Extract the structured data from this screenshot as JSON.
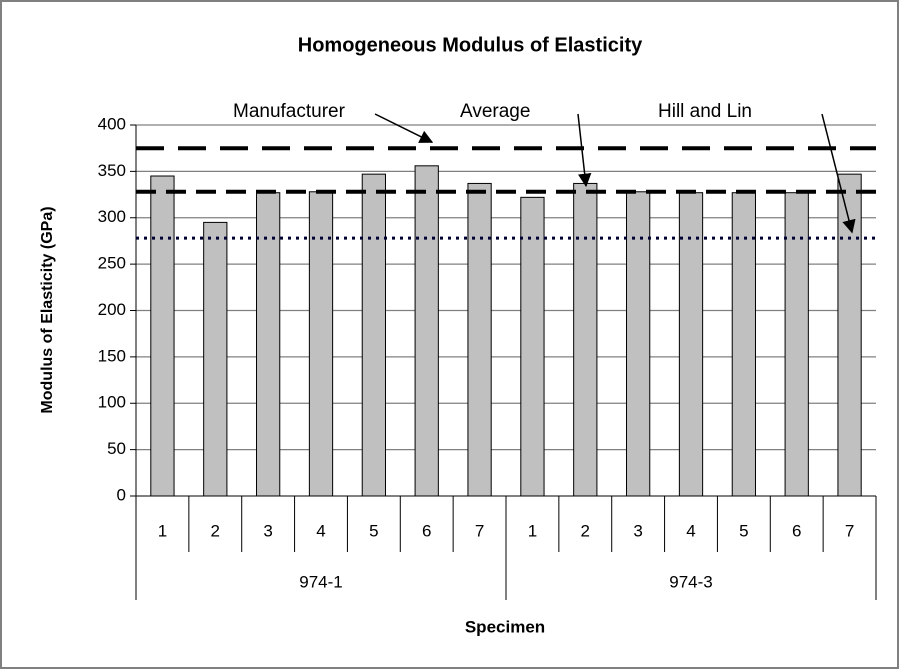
{
  "chart_data": {
    "type": "bar",
    "title": "Homogeneous Modulus of Elasticity",
    "x_label": "Specimen",
    "y_label": "Modulus of Elasticity (GPa)",
    "groups": [
      {
        "name": "974-1",
        "categories": [
          "1",
          "2",
          "3",
          "4",
          "5",
          "6",
          "7"
        ]
      },
      {
        "name": "974-3",
        "categories": [
          "1",
          "2",
          "3",
          "4",
          "5",
          "6",
          "7"
        ]
      }
    ],
    "values": [
      345,
      295,
      327,
      328,
      347,
      356,
      337,
      322,
      337,
      328,
      327,
      327,
      327,
      347
    ],
    "color": "#c0c0c0",
    "ylim": [
      0,
      400
    ],
    "yticks": [
      0,
      50,
      100,
      150,
      200,
      250,
      300,
      350,
      400
    ],
    "grid": true,
    "reference_lines": [
      {
        "name": "Manufacturer",
        "value": 375,
        "style": "long-dash",
        "color": "#000000"
      },
      {
        "name": "Average",
        "value": 328,
        "style": "dash",
        "color": "#000000"
      },
      {
        "name": "Hill and Lin",
        "value": 278,
        "style": "dot",
        "color": "#000033"
      }
    ]
  }
}
